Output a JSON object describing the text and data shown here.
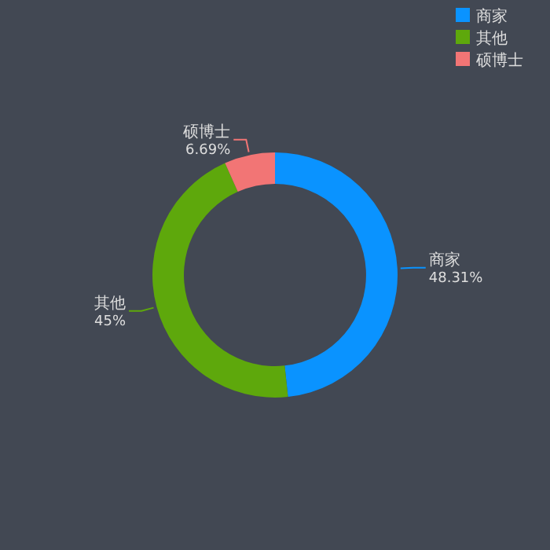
{
  "chart_data": {
    "type": "donut",
    "categories": [
      "商家",
      "其他",
      "硕博士"
    ],
    "values": [
      48.31,
      45,
      6.69
    ],
    "colors": [
      "#0a93ff",
      "#5ea80c",
      "#f27575"
    ],
    "value_labels": [
      "48.31%",
      "45%",
      "6.69%"
    ],
    "legend": "top right"
  }
}
